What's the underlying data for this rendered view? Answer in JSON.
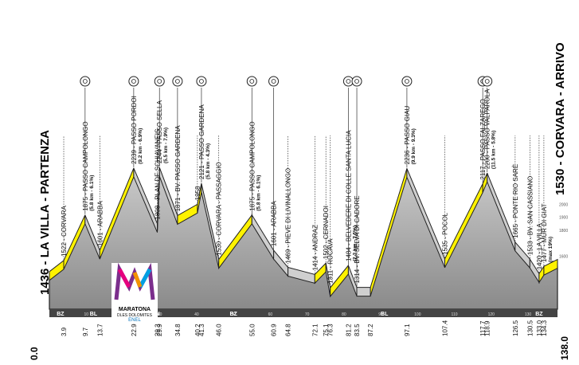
{
  "race": {
    "start_label": "1436 - LA VILLA - PARTENZA",
    "finish_label": "1530 - CORVARA - ARRIVO",
    "start_km": "0.0",
    "finish_km": "138.0"
  },
  "logo": {
    "line1": "MARATONA",
    "line2": "DLES DOLOMITES",
    "line3": "ENEL"
  },
  "special_badge": "",
  "waypoints": [
    {
      "km": 3.9,
      "elev": 1522,
      "label": "1522 - CORVARA",
      "km_label": "3.9"
    },
    {
      "km": 9.7,
      "elev": 1875,
      "label": "1875 - PASSO CAMPOLONGO",
      "sub": "(5.8 km - 6.1%)",
      "km_label": "9.7",
      "climb": true
    },
    {
      "km": 13.7,
      "elev": 1601,
      "label": "1601 - ARABBA",
      "km_label": "13.7"
    },
    {
      "km": 22.9,
      "elev": 2239,
      "label": "2239 - PASSO PORDOI",
      "sub": "(9.2 km - 6.9%)",
      "km_label": "22.9",
      "climb": true
    },
    {
      "km": 29.3,
      "elev": 1808,
      "label": "1808 - PLAN DE SCHIAVANEIS",
      "km_label": "29.3"
    },
    {
      "km": 29.9,
      "elev": 2244,
      "label": "2244 - PASSO SELLA",
      "sub": "(5.5 km - 7.9%)",
      "km_label": "29.9",
      "climb": true
    },
    {
      "km": 34.8,
      "elev": 1871,
      "label": "1871 - BV. PASSO GARDENA",
      "km_label": "34.8",
      "climb": true
    },
    {
      "km": 40.2,
      "elev": 1958,
      "label": "1958",
      "km_label": "40.2"
    },
    {
      "km": 41.3,
      "elev": 2121,
      "label": "2121 - PASSO GARDENA",
      "sub": "(5.8 km - 4.3%)",
      "km_label": "41.3",
      "climb": true
    },
    {
      "km": 46.0,
      "elev": 1530,
      "label": "1530 - CORVARA - PASSAGGIO",
      "km_label": "46.0"
    },
    {
      "km": 55.0,
      "elev": 1875,
      "label": "1875 - PASSO CAMPOLONGO",
      "sub": "(5.8 km - 6.1%)",
      "km_label": "55.0",
      "climb": true
    },
    {
      "km": 60.9,
      "elev": 1601,
      "label": "1601 - ARABBA",
      "km_label": "60.9",
      "climb": true
    },
    {
      "km": 64.8,
      "elev": 1469,
      "label": "1469 - PIEVE DI LIVINALLONGO",
      "km_label": "64.8"
    },
    {
      "km": 72.1,
      "elev": 1414,
      "label": "1414 - ANDRAZ",
      "km_label": "72.1"
    },
    {
      "km": 75.1,
      "elev": 1502,
      "label": "1502 - CERNADOI",
      "km_label": "75.1"
    },
    {
      "km": 76.3,
      "elev": 1311,
      "label": "1311 - RUCAVA",
      "km_label": "76.3"
    },
    {
      "km": 81.2,
      "elev": 1484,
      "label": "1484 - BELVEDERE DI COLLE SANTA LUCIA",
      "sub": "(2.3 km - 7.5%)",
      "km_label": "81.2",
      "climb": true
    },
    {
      "km": 83.5,
      "elev": 1314,
      "label": "1314 - BV. SELVA DI CADORE",
      "km_label": "83.5",
      "climb": true
    },
    {
      "km": 87.2,
      "elev": 1314,
      "label": "",
      "km_label": "87.2"
    },
    {
      "km": 97.1,
      "elev": 2236,
      "label": "2236 - PASSO GIAU",
      "sub": "(9.9 km - 9.3%)",
      "km_label": "97.1",
      "climb": true
    },
    {
      "km": 107.4,
      "elev": 1535,
      "label": "1535 - POCOL",
      "km_label": "107.4"
    },
    {
      "km": 117.7,
      "elev": 2117,
      "label": "2117 - PASSO FALZAREGO",
      "km_label": "117.7",
      "climb": true
    },
    {
      "km": 118.9,
      "elev": 2200,
      "label": "2200 - PASSO VALPAROLA",
      "sub": "(11.5 km - 5.8%)",
      "km_label": "118.9",
      "climb": true
    },
    {
      "km": 126.5,
      "elev": 1665,
      "label": "1665 - PONTE RIO SARÈ",
      "km_label": "126.5"
    },
    {
      "km": 130.5,
      "elev": 1533,
      "label": "1533 - BV. SAN CASSIANO",
      "km_label": "130.5"
    },
    {
      "km": 133.0,
      "elev": 1420,
      "label": "1420 - LA VILLA",
      "km_label": "133.0"
    },
    {
      "km": 134.3,
      "elev": 1477,
      "label": "1477 - MUR DI GIAT",
      "sub": "(max 19%)",
      "km_label": "134.3"
    }
  ],
  "provinces": [
    {
      "label": "BZ",
      "at_km": 3
    },
    {
      "label": "BL",
      "at_km": 12
    },
    {
      "label": "TN",
      "at_km": 29
    },
    {
      "label": "BZ",
      "at_km": 50
    },
    {
      "label": "BL",
      "at_km": 91
    },
    {
      "label": "BZ",
      "at_km": 133
    }
  ],
  "axis_ticks": [
    "10",
    "20",
    "30",
    "40",
    "50",
    "60",
    "70",
    "80",
    "90",
    "100",
    "110",
    "120",
    "130"
  ],
  "elev_scale": [
    "2000",
    "1900",
    "1800",
    "1600"
  ],
  "colors": {
    "climb": "#FFF200",
    "profile": "#9b9b9b",
    "outline": "#222222"
  }
}
